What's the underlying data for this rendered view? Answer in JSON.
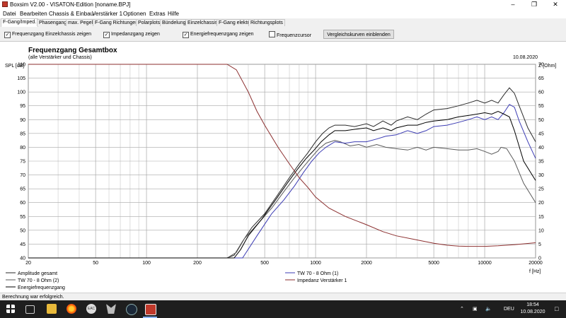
{
  "window": {
    "title": "Boxsim V2.00 - VISATON-Edition [noname.BPJ]"
  },
  "menu": [
    "Datei",
    "Bearbeiten",
    "Chassis & Einbau",
    "Verstärker 1",
    "Optionen",
    "Extras",
    "Hilfe"
  ],
  "tabs": [
    "F-Gang/Imped.",
    "Phasengang",
    "max. Pegel",
    "F-Gang Richtungen",
    "Polarplots",
    "Bündelung",
    "Einzelchassis",
    "F-Gang elektr.",
    "Richtungsplots"
  ],
  "options": {
    "cb1": {
      "label": "Frequenzgang Einzelchassis zeigen",
      "checked": "✓"
    },
    "cb2": {
      "label": "Impedanzgang zeigen",
      "checked": "✓"
    },
    "cb3": {
      "label": "Energiefrequenzgang zeigen",
      "checked": "✓"
    },
    "cb4": {
      "label": "Frequenzcursor",
      "checked": ""
    },
    "button": "Vergleichskurven einblenden"
  },
  "chart_data": {
    "type": "line",
    "title": "Frequenzgang Gesamtbox",
    "subtitle": "(alle Verstärker und Chassis)",
    "date": "10.08.2020",
    "ylabel": "SPL [dB]",
    "y2label": "Z [Ohm]",
    "xlabel": "f [Hz]",
    "xscale": "log",
    "xlim": [
      20,
      20000
    ],
    "ylim": [
      40,
      110
    ],
    "y2lim": [
      0,
      70
    ],
    "xticks": [
      {
        "v": 20,
        "label": "20"
      },
      {
        "v": 50,
        "label": "50"
      },
      {
        "v": 100,
        "label": "100"
      },
      {
        "v": 200,
        "label": "200"
      },
      {
        "v": 500,
        "label": "500"
      },
      {
        "v": 1000,
        "label": "1000"
      },
      {
        "v": 2000,
        "label": "2000"
      },
      {
        "v": 5000,
        "label": "5000"
      },
      {
        "v": 10000,
        "label": "10000"
      },
      {
        "v": 20000,
        "label": "20000"
      }
    ],
    "yticks": [
      "40",
      "45",
      "50",
      "55",
      "60",
      "65",
      "70",
      "75",
      "80",
      "85",
      "90",
      "95",
      "100",
      "105",
      "110"
    ],
    "y2ticks": [
      "0",
      "5",
      "10",
      "15",
      "20",
      "25",
      "30",
      "35",
      "40",
      "45",
      "50",
      "55",
      "60",
      "65",
      "70"
    ],
    "grid": true,
    "legend_position": "bottom",
    "series": [
      {
        "name": "Amplitude gesamt",
        "color": "#2a2a2a",
        "x": [
          20,
          300,
          330,
          370,
          420,
          500,
          600,
          700,
          800,
          900,
          1000,
          1100,
          1200,
          1300,
          1500,
          1700,
          2000,
          2200,
          2500,
          2800,
          3000,
          3500,
          4000,
          4500,
          5000,
          6000,
          7000,
          8000,
          9000,
          10000,
          11000,
          12000,
          13000,
          14000,
          15000,
          16000,
          18000,
          20000
        ],
        "y": [
          40,
          40,
          41,
          46,
          51,
          56,
          63,
          69,
          74,
          78,
          82,
          85,
          87,
          88,
          88,
          87.5,
          88.5,
          87.5,
          89.5,
          88,
          89.5,
          91,
          90,
          92,
          93.5,
          94,
          95,
          96,
          97,
          96,
          97,
          96,
          99,
          101.5,
          99.5,
          95,
          87,
          82
        ]
      },
      {
        "name": "TW 70 - 8 Ohm (2)",
        "color": "#5a5a5a",
        "x": [
          20,
          300,
          340,
          380,
          450,
          550,
          650,
          750,
          850,
          950,
          1050,
          1150,
          1300,
          1400,
          1600,
          1800,
          2000,
          2300,
          2600,
          3000,
          3500,
          4000,
          4500,
          5000,
          6000,
          7000,
          8000,
          9000,
          10000,
          11000,
          12000,
          12500,
          13500,
          15000,
          17000,
          20000
        ],
        "y": [
          40,
          40,
          42,
          47,
          52,
          58,
          64,
          69,
          73,
          76.5,
          79.5,
          81.5,
          82.5,
          82,
          80.5,
          81,
          80,
          81,
          80,
          79.5,
          79,
          80,
          79,
          80,
          79.5,
          79,
          79,
          79.5,
          78.5,
          77.5,
          78.5,
          80,
          79.5,
          75,
          67,
          60
        ]
      },
      {
        "name": "TW 70 - 8 Ohm (1)",
        "color": "#3c3cb4",
        "x": [
          20,
          370,
          450,
          550,
          650,
          750,
          850,
          950,
          1050,
          1150,
          1300,
          1500,
          1700,
          2000,
          2300,
          2600,
          3000,
          3500,
          4000,
          4500,
          5000,
          6000,
          7000,
          8000,
          9000,
          10000,
          11000,
          12000,
          13000,
          14000,
          15000,
          16000,
          18000,
          20000
        ],
        "y": [
          40,
          40,
          48,
          56,
          61,
          66,
          71,
          75,
          78,
          80,
          82,
          81.5,
          82,
          82,
          83,
          84,
          84.5,
          86,
          85,
          86,
          87.5,
          88,
          89,
          90,
          91,
          90,
          91,
          90,
          92.5,
          95.5,
          94.5,
          89.5,
          82,
          76
        ]
      },
      {
        "name": "Energiefrequenzgang",
        "color": "#000000",
        "x": [
          20,
          330,
          360,
          400,
          480,
          580,
          680,
          780,
          880,
          980,
          1080,
          1200,
          1300,
          1500,
          1700,
          2000,
          2200,
          2500,
          2800,
          3000,
          3500,
          4000,
          4500,
          5000,
          6000,
          7000,
          8000,
          9000,
          10000,
          11000,
          12000,
          13000,
          14000,
          15000,
          17000,
          20000
        ],
        "y": [
          40,
          40,
          43,
          48,
          54,
          61,
          67,
          72,
          76,
          79,
          82,
          84.5,
          86,
          86,
          86.5,
          87,
          86,
          87,
          86,
          87,
          88,
          88,
          89,
          89.5,
          90,
          91,
          91.5,
          92,
          92.5,
          92,
          93,
          92,
          91,
          86,
          75,
          68
        ]
      },
      {
        "name": "Impedanz Verstärker 1",
        "color": "#8b2e2e",
        "axis": "right",
        "x": [
          20,
          300,
          340,
          400,
          450,
          500,
          600,
          700,
          800,
          900,
          1000,
          1200,
          1500,
          2000,
          2500,
          3000,
          4000,
          5000,
          6000,
          7000,
          8000,
          10000,
          12000,
          15000,
          20000
        ],
        "y": [
          70,
          70,
          68,
          60,
          53,
          48,
          40,
          34,
          29,
          25.5,
          22,
          18,
          15,
          12,
          9.5,
          8,
          6.5,
          5.3,
          4.6,
          4.3,
          4.2,
          4.2,
          4.4,
          4.8,
          5.5
        ]
      }
    ]
  },
  "legend": {
    "l1": "Amplitude gesamt",
    "l2": "TW 70 - 8 Ohm (2)",
    "l3": "Energiefrequenzgang",
    "l4": "TW 70 - 8 Ohm (1)",
    "l5": "Impedanz Verstärker 1"
  },
  "status": "Berechnung war erfolgreich.",
  "taskbar": {
    "lang": "DEU",
    "time": "18:54",
    "date": "10.08.2020",
    "apps": [
      "start-icon",
      "task-view-icon",
      "file-explorer-icon",
      "firefox-icon",
      "eac-icon",
      "app-icon",
      "steam-icon",
      "boxsim-icon"
    ]
  }
}
